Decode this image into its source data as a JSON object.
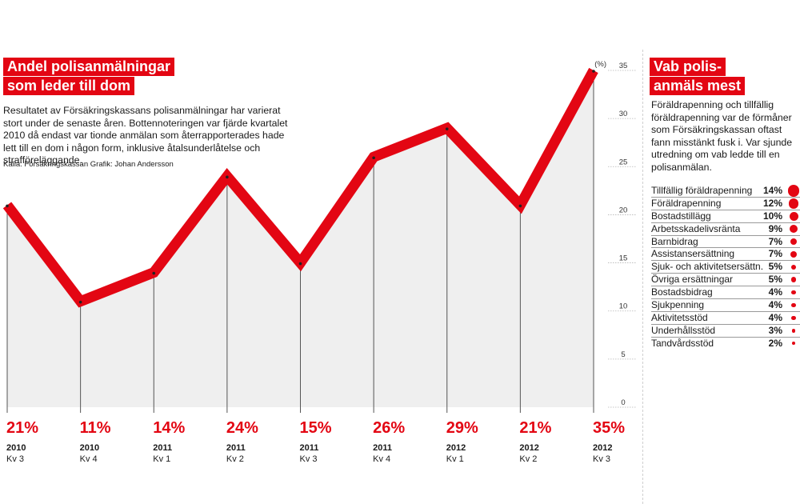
{
  "title_lines": [
    "Andel polisanmälningar",
    "som leder till dom"
  ],
  "lead_text": "Resultatet av Försäkringskassans polisanmälningar har varierat stort under de senaste åren. Bottennoteringen var fjärde kvartalet 2010 då endast var tionde anmälan som återrapporterades hade lett till en dom i någon form, inklusive åtalsunderlåtelse och strafföreläggande.",
  "source_text": "Källa: Försäkringskassan   Grafik: Johan Andersson",
  "chart_data": {
    "type": "area",
    "unit_label": "(%)",
    "ylim": [
      0,
      35
    ],
    "yticks": [
      0,
      5,
      10,
      15,
      20,
      25,
      30,
      35
    ],
    "grid": false,
    "points": [
      {
        "label": "21%",
        "value": 21,
        "year": "2010",
        "quarter": "Kv 3"
      },
      {
        "label": "11%",
        "value": 11,
        "year": "2010",
        "quarter": "Kv 4"
      },
      {
        "label": "14%",
        "value": 14,
        "year": "2011",
        "quarter": "Kv 1"
      },
      {
        "label": "24%",
        "value": 24,
        "year": "2011",
        "quarter": "Kv 2"
      },
      {
        "label": "15%",
        "value": 15,
        "year": "2011",
        "quarter": "Kv 3"
      },
      {
        "label": "26%",
        "value": 26,
        "year": "2011",
        "quarter": "Kv 4"
      },
      {
        "label": "29%",
        "value": 29,
        "year": "2012",
        "quarter": "Kv 1"
      },
      {
        "label": "21%",
        "value": 21,
        "year": "2012",
        "quarter": "Kv 2"
      },
      {
        "label": "35%",
        "value": 35,
        "year": "2012",
        "quarter": "Kv 3"
      }
    ]
  },
  "sidebar": {
    "title_lines": [
      "Vab polis-",
      "anmäls mest"
    ],
    "text": "Föräldrapenning och tillfällig föräldrapenning var de förmåner som Försäkringskassan oftast fann misstänkt fusk i. Var sjunde utredning om vab ledde till en polisanmälan.",
    "items": [
      {
        "name": "Tillfällig föräldrapenning",
        "pct": "14%",
        "value": 14
      },
      {
        "name": "Föräldrapenning",
        "pct": "12%",
        "value": 12
      },
      {
        "name": "Bostadstillägg",
        "pct": "10%",
        "value": 10
      },
      {
        "name": "Arbetsskadelivsränta",
        "pct": "9%",
        "value": 9
      },
      {
        "name": "Barnbidrag",
        "pct": "7%",
        "value": 7
      },
      {
        "name": "Assistansersättning",
        "pct": "7%",
        "value": 7
      },
      {
        "name": "Sjuk- och aktivitetsersättn.",
        "pct": "5%",
        "value": 5
      },
      {
        "name": "Övriga ersättningar",
        "pct": "5%",
        "value": 5
      },
      {
        "name": "Bostadsbidrag",
        "pct": "4%",
        "value": 4
      },
      {
        "name": "Sjukpenning",
        "pct": "4%",
        "value": 4
      },
      {
        "name": "Aktivitetsstöd",
        "pct": "4%",
        "value": 4
      },
      {
        "name": "Underhållsstöd",
        "pct": "3%",
        "value": 3
      },
      {
        "name": "Tandvårdsstöd",
        "pct": "2%",
        "value": 2
      }
    ]
  },
  "colors": {
    "accent": "#e30613",
    "area_fill": "#efefef",
    "stem": "#555555",
    "text": "#1a1a1a"
  }
}
